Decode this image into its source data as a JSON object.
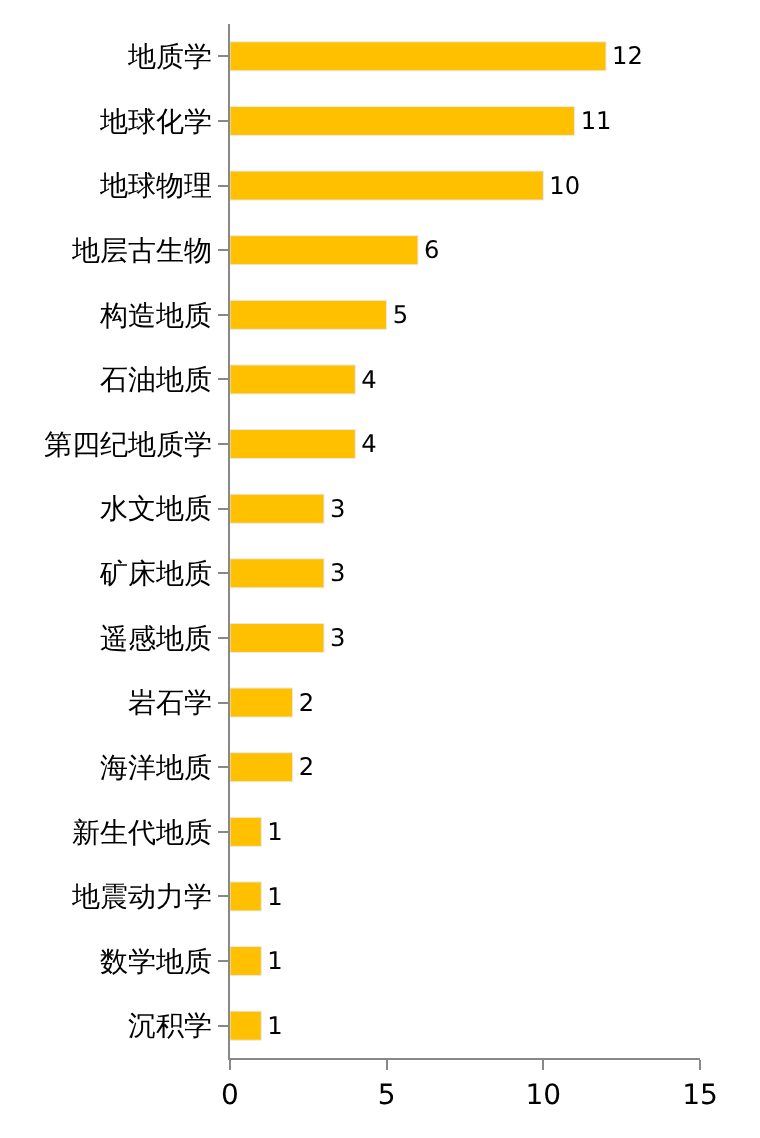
{
  "chart_data": {
    "type": "bar",
    "orientation": "horizontal",
    "categories": [
      "地质学",
      "地球化学",
      "地球物理",
      "地层古生物",
      "构造地质",
      "石油地质",
      "第四纪地质学",
      "水文地质",
      "矿床地质",
      "遥感地质",
      "岩石学",
      "海洋地质",
      "新生代地质",
      "地震动力学",
      "数学地质",
      "沉积学"
    ],
    "values": [
      12,
      11,
      10,
      6,
      5,
      4,
      4,
      3,
      3,
      3,
      2,
      2,
      1,
      1,
      1,
      1
    ],
    "color": "#ffc000",
    "xlim": [
      0,
      15
    ],
    "xticks": [
      0,
      5,
      10,
      15
    ],
    "data_labels": true
  }
}
